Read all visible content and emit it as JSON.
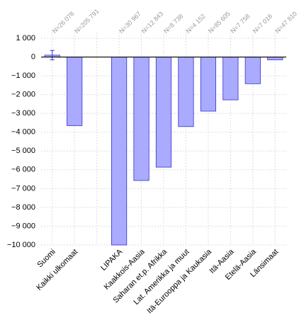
{
  "chart_data": {
    "type": "bar",
    "categories": [
      "Suomi",
      "Kaikki ulkomaat",
      null,
      "LIPAKA",
      "Kaakkois-Aasia",
      "Saharan et.p. Afrikka",
      "Lat. Amerikka ja muut",
      "Itä-Eurooppa ja Kaukasia",
      "Itä-Aasia",
      "Etelä-Aasia",
      "Länsimaat"
    ],
    "values": [
      100,
      -3650,
      null,
      -10000,
      -6570,
      -5860,
      -3700,
      -2880,
      -2280,
      -1420,
      -150
    ],
    "errors": [
      250,
      null,
      null,
      null,
      null,
      null,
      null,
      null,
      null,
      null,
      null
    ],
    "annotations": [
      "N=26 078",
      "N=205 791",
      null,
      "N=30 967",
      "N=12 843",
      "N=8 738",
      "N=4 152",
      "N=85 605",
      "N=7 758",
      "N=7 018",
      "N=47 810"
    ],
    "color": "#aaaaff",
    "edge_color": "#3333cc",
    "ylim": [
      -10000,
      1000
    ],
    "yticks": [
      {
        "value": 1000,
        "label": "1 000"
      },
      0,
      {
        "value": -1000,
        "label": "−1 000"
      },
      {
        "value": -2000,
        "label": "−2 000"
      },
      {
        "value": -3000,
        "label": "−3 000"
      },
      {
        "value": -4000,
        "label": "−4 000"
      },
      {
        "value": -5000,
        "label": "−5 000"
      },
      {
        "value": -6000,
        "label": "−6 000"
      },
      {
        "value": -7000,
        "label": "−7 000"
      },
      {
        "value": -8000,
        "label": "−8 000"
      },
      {
        "value": -9000,
        "label": "−9 000"
      },
      {
        "value": -10000,
        "label": "−10 000"
      }
    ],
    "grid": true
  }
}
